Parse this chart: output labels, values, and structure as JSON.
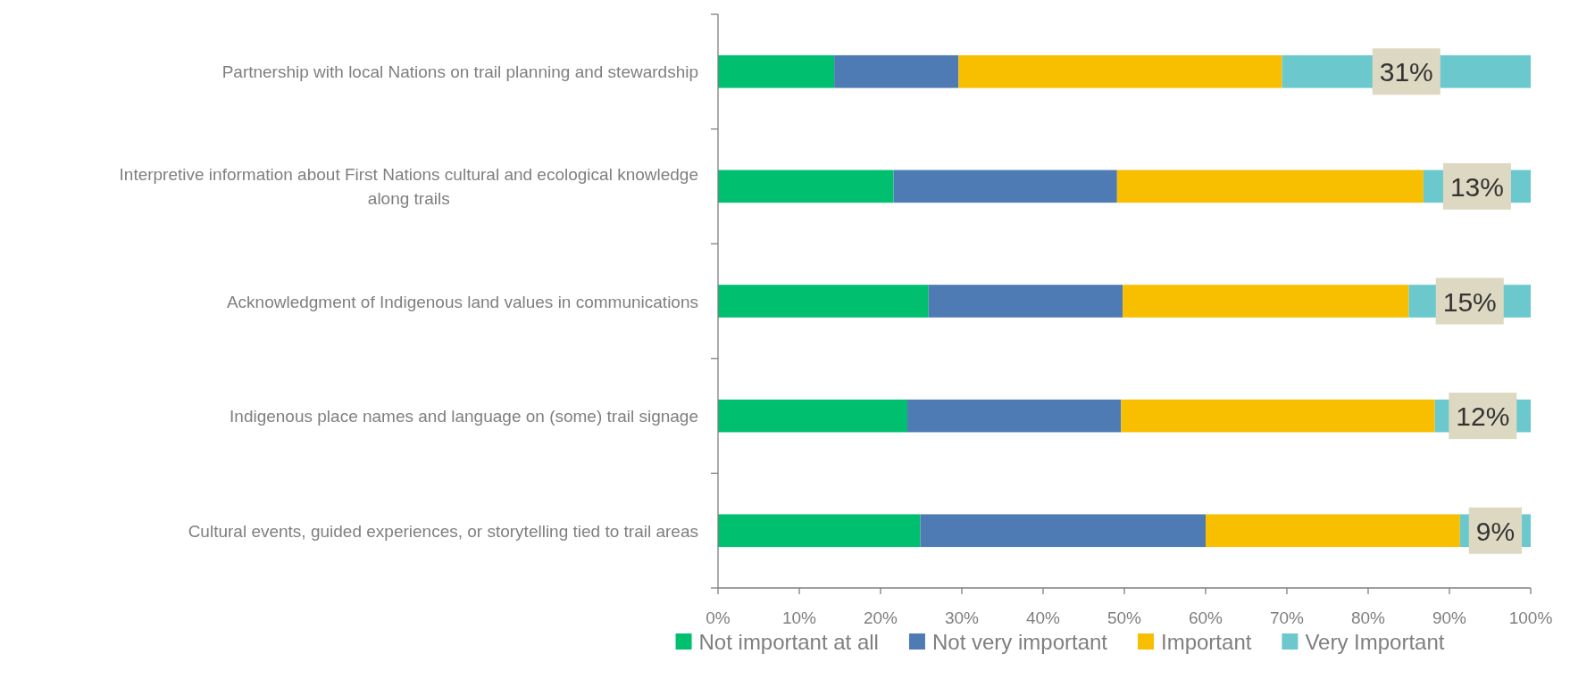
{
  "chart_data": {
    "type": "bar",
    "orientation": "horizontal",
    "stacked": true,
    "categories": [
      "Partnership with local Nations on trail planning and stewardship",
      "Interpretive information about First Nations cultural and ecological knowledge along trails",
      "Acknowledgment of Indigenous land values in communications",
      "Indigenous place names and language on (some) trail signage",
      "Cultural events, guided experiences, or storytelling tied to trail areas"
    ],
    "series": [
      {
        "name": "Not important at all",
        "color": "#00bf6f",
        "values": [
          14.3,
          21.6,
          25.9,
          23.3,
          24.9
        ]
      },
      {
        "name": "Not very important",
        "color": "#4f7bb5",
        "values": [
          15.3,
          27.5,
          23.9,
          26.3,
          35.1
        ]
      },
      {
        "name": "Important",
        "color": "#f8be00",
        "values": [
          39.8,
          37.7,
          35.2,
          38.6,
          31.3
        ]
      },
      {
        "name": "Very Important",
        "color": "#6bc8cc",
        "values": [
          30.6,
          13.2,
          15.0,
          11.8,
          8.7
        ],
        "value_labels": [
          "31%",
          "13%",
          "15%",
          "12%",
          "9%"
        ]
      }
    ],
    "xlim": [
      0,
      100
    ],
    "xticks": [
      {
        "value": 0,
        "label": "0%"
      },
      {
        "value": 10,
        "label": "10%"
      },
      {
        "value": 20,
        "label": "20%"
      },
      {
        "value": 30,
        "label": "30%"
      },
      {
        "value": 40,
        "label": "40%"
      },
      {
        "value": 50,
        "label": "50%"
      },
      {
        "value": 60,
        "label": "60%"
      },
      {
        "value": 70,
        "label": "70%"
      },
      {
        "value": 80,
        "label": "80%"
      },
      {
        "value": 90,
        "label": "90%"
      },
      {
        "value": 100,
        "label": "100%"
      }
    ],
    "grid": false,
    "legend": "bottom"
  }
}
